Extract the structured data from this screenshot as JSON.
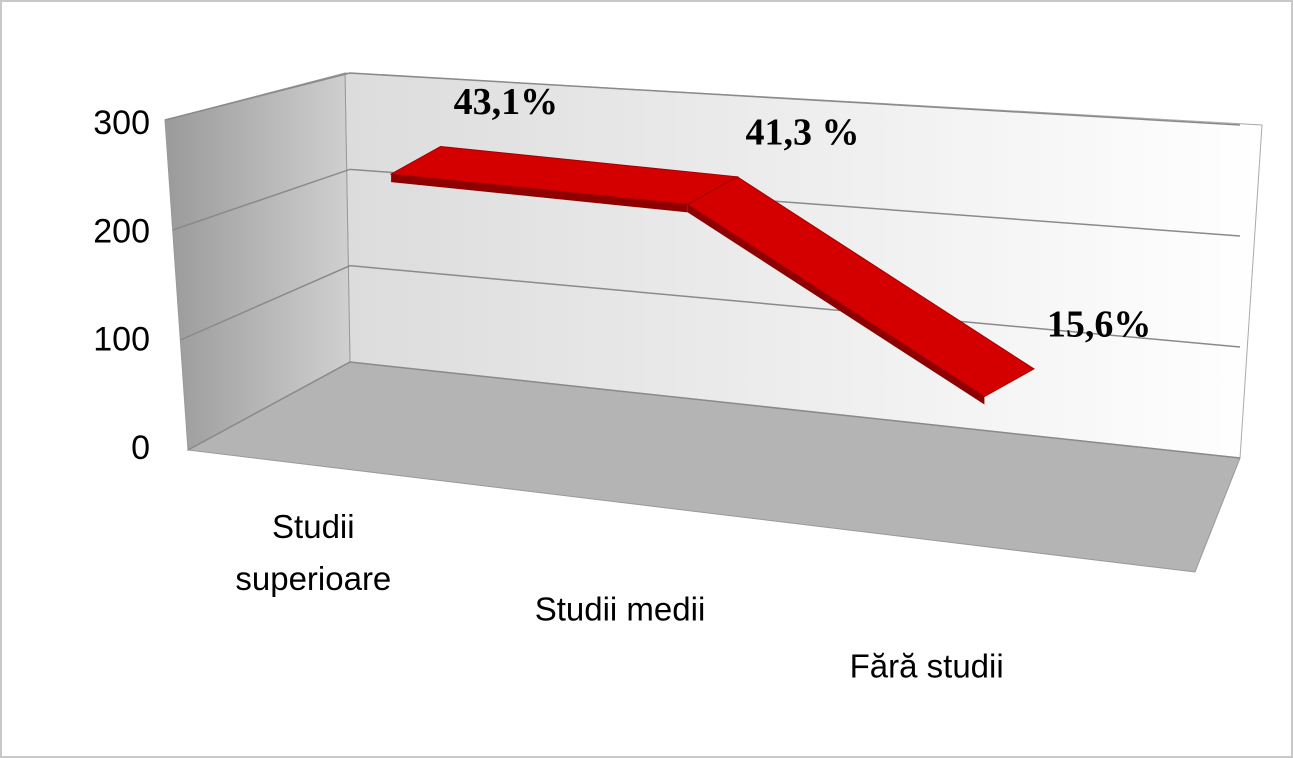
{
  "chart_data": {
    "type": "line3d",
    "categories": [
      "Studii superioare",
      "Studii medii",
      "Fără studii"
    ],
    "series": [
      {
        "color": "#d40000",
        "values": [
          267,
          256,
          97
        ]
      }
    ],
    "annotations": [
      "43,1%",
      "41,3 %",
      "15,6%"
    ],
    "ylim": [
      0,
      300
    ],
    "yticks": [
      0,
      100,
      200,
      300
    ],
    "grid": true
  }
}
